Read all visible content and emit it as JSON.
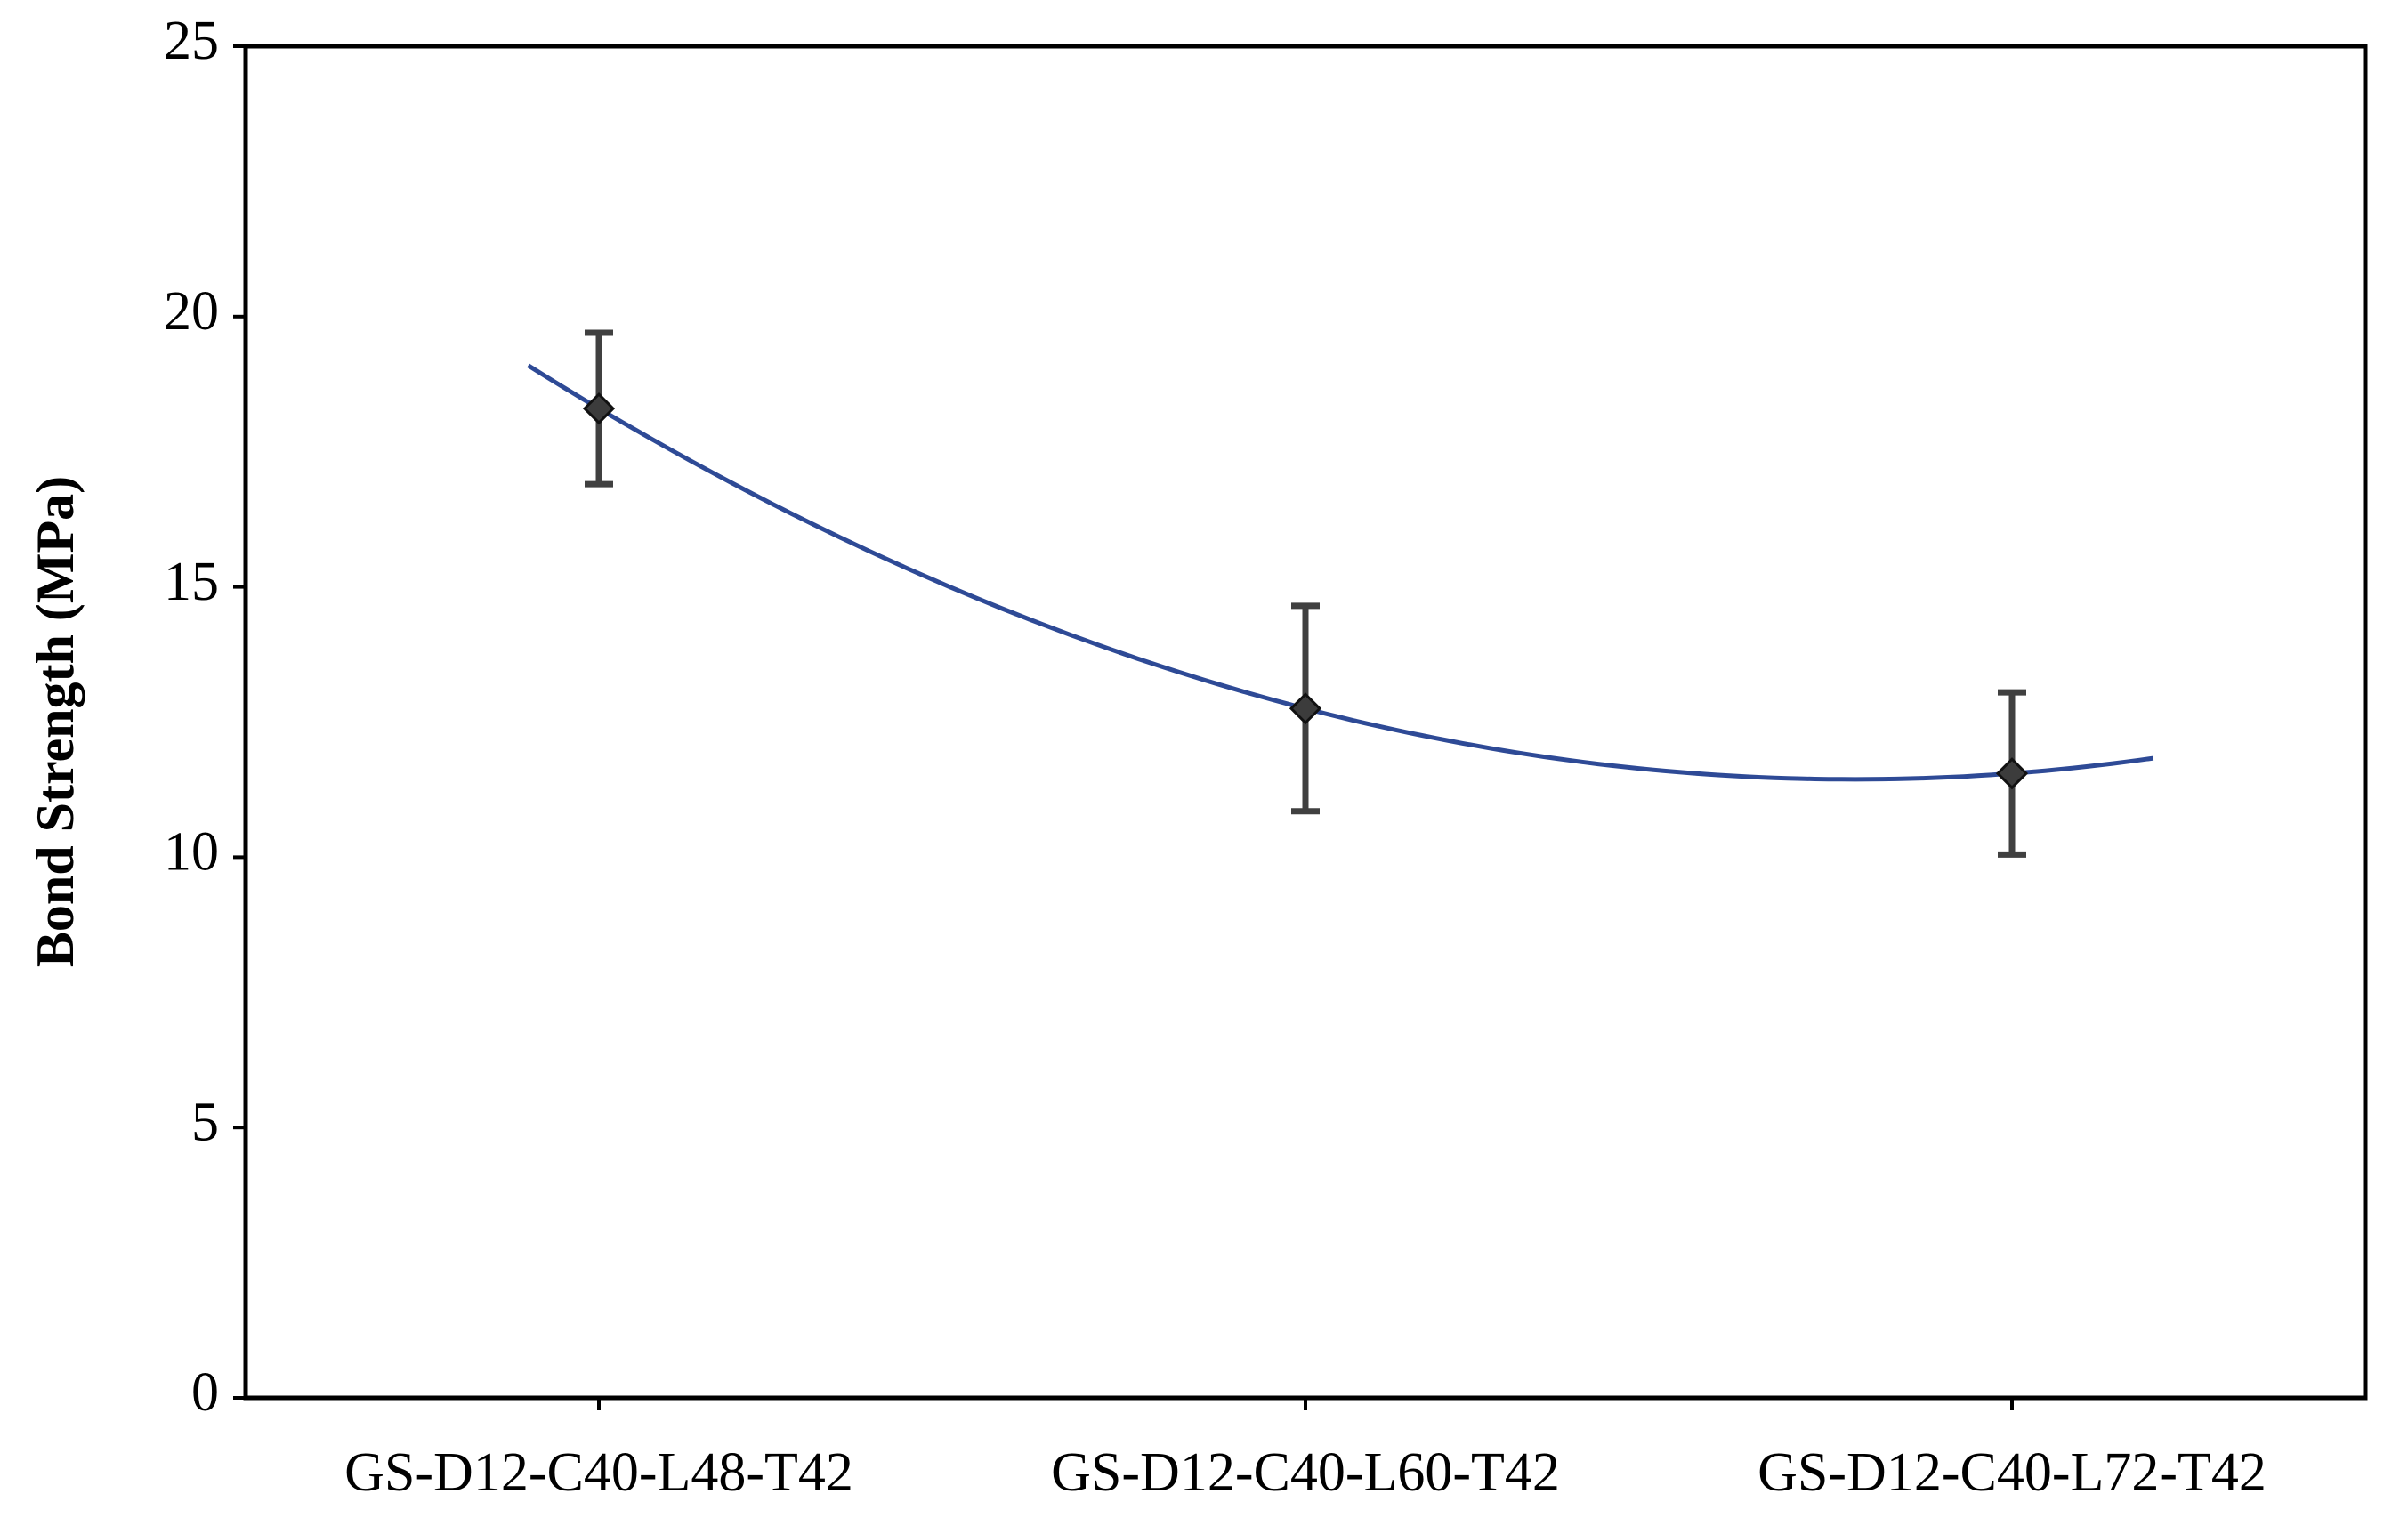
{
  "chart_data": {
    "type": "scatter",
    "y_label": "Bond Strength (MPa)",
    "categories": [
      "GS-D12-C40-L48-T42",
      "GS-D12-C40-L60-T42",
      "GS-D12-C40-L72-T42"
    ],
    "series": [
      {
        "values": [
          18.3,
          12.75,
          11.55
        ],
        "errors": [
          1.4,
          1.9,
          1.5
        ],
        "color": "#3c3c3c",
        "error_color": "#404040",
        "trendline": {
          "type": "polynomial",
          "order": 2,
          "backward": 0.1,
          "forward": 0.2,
          "color": "#2e4a96"
        }
      }
    ],
    "ylim": [
      0,
      25
    ],
    "yticks": [
      0,
      5,
      10,
      15,
      20,
      25
    ],
    "grid": false
  }
}
